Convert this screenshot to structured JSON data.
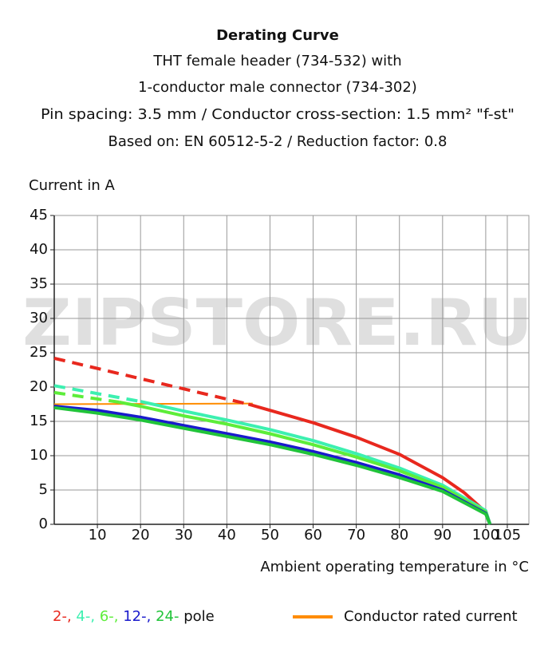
{
  "chart_data": {
    "type": "line",
    "title": "Derating Curve",
    "subtitle": [
      "THT female header (734-532) with",
      "1-conductor male connector (734-302)",
      "Pin spacing: 3.5 mm / Conductor cross-section: 1.5 mm² \"f-st\"",
      "Based on: EN 60512-5-2 / Reduction factor: 0.8"
    ],
    "ylabel": "Current in A",
    "xlabel": "Ambient operating temperature in °C",
    "watermark": "ZIPSTORE.RU",
    "xlim": [
      0,
      110
    ],
    "ylim": [
      0,
      45
    ],
    "xticks": [
      10,
      20,
      30,
      40,
      50,
      60,
      70,
      80,
      90,
      100,
      105
    ],
    "yticks": [
      0,
      5,
      10,
      15,
      20,
      25,
      30,
      35,
      40,
      45
    ],
    "grid": true,
    "series": [
      {
        "color": "#ff8c00",
        "dashed": false,
        "width": 2,
        "x": [
          0,
          46
        ],
        "values": [
          17.5,
          17.6
        ]
      },
      {
        "color": "#e8281e",
        "dashed": true,
        "width": 4,
        "x": [
          0,
          45
        ],
        "values": [
          24.2,
          17.5
        ]
      },
      {
        "color": "#e8281e",
        "dashed": false,
        "width": 4,
        "x": [
          45,
          50,
          60,
          70,
          80,
          90,
          95,
          100,
          101
        ],
        "values": [
          17.5,
          16.6,
          14.8,
          12.7,
          10.2,
          6.8,
          4.6,
          1.8,
          0
        ]
      },
      {
        "color": "#3cf0b0",
        "dashed": true,
        "width": 4,
        "x": [
          0,
          20
        ],
        "values": [
          20.2,
          17.9
        ]
      },
      {
        "color": "#3cf0b0",
        "dashed": false,
        "width": 4,
        "x": [
          20,
          30,
          40,
          50,
          60,
          70,
          80,
          90,
          100,
          101
        ],
        "values": [
          17.9,
          16.5,
          15.2,
          13.8,
          12.2,
          10.3,
          8.2,
          5.7,
          2,
          0
        ]
      },
      {
        "color": "#5ded3a",
        "dashed": true,
        "width": 4,
        "x": [
          0,
          15
        ],
        "values": [
          19.2,
          17.8
        ]
      },
      {
        "color": "#5ded3a",
        "dashed": false,
        "width": 4,
        "x": [
          15,
          20,
          30,
          40,
          50,
          60,
          70,
          80,
          90,
          100,
          101
        ],
        "values": [
          17.8,
          17.2,
          15.8,
          14.6,
          13.2,
          11.6,
          9.8,
          7.8,
          5.4,
          1.8,
          0
        ]
      },
      {
        "color": "#1a1acc",
        "dashed": false,
        "width": 4,
        "x": [
          0,
          10,
          20,
          30,
          40,
          50,
          60,
          70,
          80,
          90,
          100,
          101
        ],
        "values": [
          17.2,
          16.6,
          15.6,
          14.4,
          13.2,
          12,
          10.6,
          9,
          7.2,
          5,
          1.6,
          0
        ]
      },
      {
        "color": "#21c43a",
        "dashed": false,
        "width": 4,
        "x": [
          0,
          10,
          20,
          30,
          40,
          50,
          60,
          70,
          80,
          90,
          100,
          101
        ],
        "values": [
          17,
          16.2,
          15.2,
          14,
          12.8,
          11.6,
          10.2,
          8.6,
          6.8,
          4.8,
          1.5,
          0
        ]
      }
    ],
    "legend": {
      "items": [
        {
          "label": "2-,",
          "color": "#e8281e"
        },
        {
          "label": "4-,",
          "color": "#3cf0b0"
        },
        {
          "label": "6-,",
          "color": "#5ded3a"
        },
        {
          "label": "12-,",
          "color": "#1a1acc"
        },
        {
          "label": "24-",
          "color": "#21c43a"
        }
      ],
      "suffix": "pole",
      "rated": {
        "label": "Conductor rated current",
        "color": "#ff8c00"
      }
    }
  }
}
